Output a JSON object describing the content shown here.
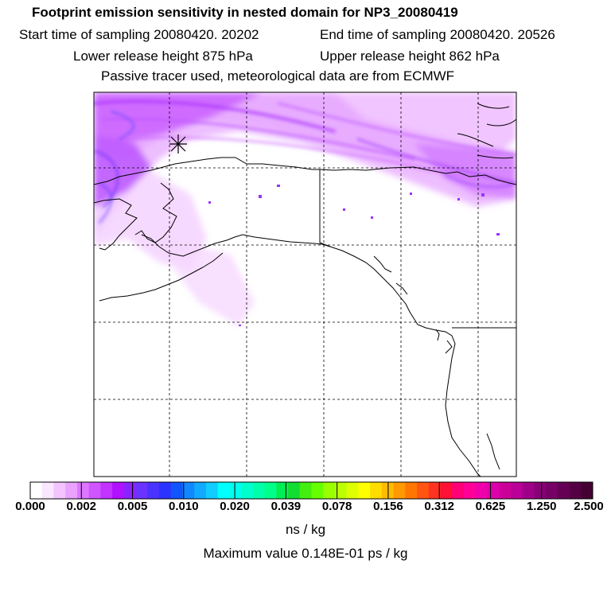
{
  "title": {
    "main": "Footprint emission sensitivity in nested domain for NP3_20080419",
    "start_time": "Start time of sampling 20080420. 20202",
    "end_time": "End time of sampling 20080420. 20526",
    "lower_height": "Lower release height  875 hPa",
    "upper_height": "Upper release height  862 hPa",
    "tracer_note": "Passive tracer used, meteorological data are from ECMWF"
  },
  "map": {
    "release_marker": "release-location-cross",
    "region": "Alaska and northwest North America"
  },
  "colorbar": {
    "tick_labels": [
      "0.000",
      "0.002",
      "0.005",
      "0.010",
      "0.020",
      "0.039",
      "0.078",
      "0.156",
      "0.312",
      "0.625",
      "1.250",
      "2.500"
    ],
    "colors": [
      "#ffffff",
      "#fbe6ff",
      "#f3c4ff",
      "#eaa2ff",
      "#dd77ff",
      "#cf55ff",
      "#c233ff",
      "#b011ff",
      "#8a22ff",
      "#6a33ff",
      "#4a33ff",
      "#2a33ff",
      "#1155ff",
      "#1188ff",
      "#11aaff",
      "#11ccff",
      "#00ffff",
      "#00ffee",
      "#00ffcc",
      "#00ffaa",
      "#00ff88",
      "#00ee55",
      "#11dd33",
      "#44ee11",
      "#66ff00",
      "#99ff00",
      "#bbff00",
      "#ddff00",
      "#ffff00",
      "#ffdd00",
      "#ffbb00",
      "#ff9900",
      "#ff7700",
      "#ff5511",
      "#ff3322",
      "#ff1133",
      "#ff0077",
      "#ff0099",
      "#ee00aa",
      "#dd00aa",
      "#cc0099",
      "#bb0099",
      "#a00088",
      "#880077",
      "#770066",
      "#660055",
      "#550044",
      "#440033"
    ],
    "unit": "ns / kg"
  },
  "max_value_text": "Maximum value  0.148E-01 ps / kg"
}
